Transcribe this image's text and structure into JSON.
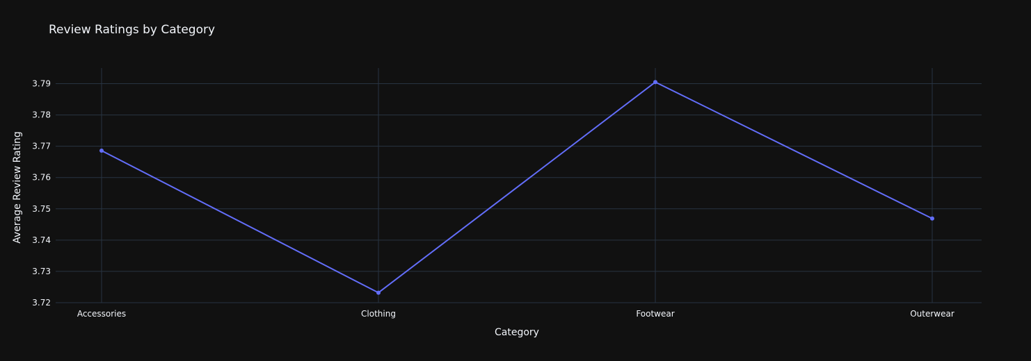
{
  "chart_data": {
    "type": "line",
    "title": "Review Ratings by Category",
    "xlabel": "Category",
    "ylabel": "Average Review Rating",
    "categories": [
      "Accessories",
      "Clothing",
      "Footwear",
      "Outerwear"
    ],
    "series": [
      {
        "values": [
          3.7686,
          3.7232,
          3.7905,
          3.7469
        ]
      }
    ],
    "ylim": [
      3.72,
      3.795
    ],
    "yticks": [
      3.72,
      3.73,
      3.74,
      3.75,
      3.76,
      3.77,
      3.78,
      3.79
    ],
    "ytick_labels": [
      "3.72",
      "3.73",
      "3.74",
      "3.75",
      "3.76",
      "3.77",
      "3.78",
      "3.79"
    ],
    "grid": true,
    "legend": false,
    "colors": {
      "background": "#111111",
      "grid": "#283442",
      "line": "#636efa",
      "text": "#f2f5fa"
    }
  }
}
